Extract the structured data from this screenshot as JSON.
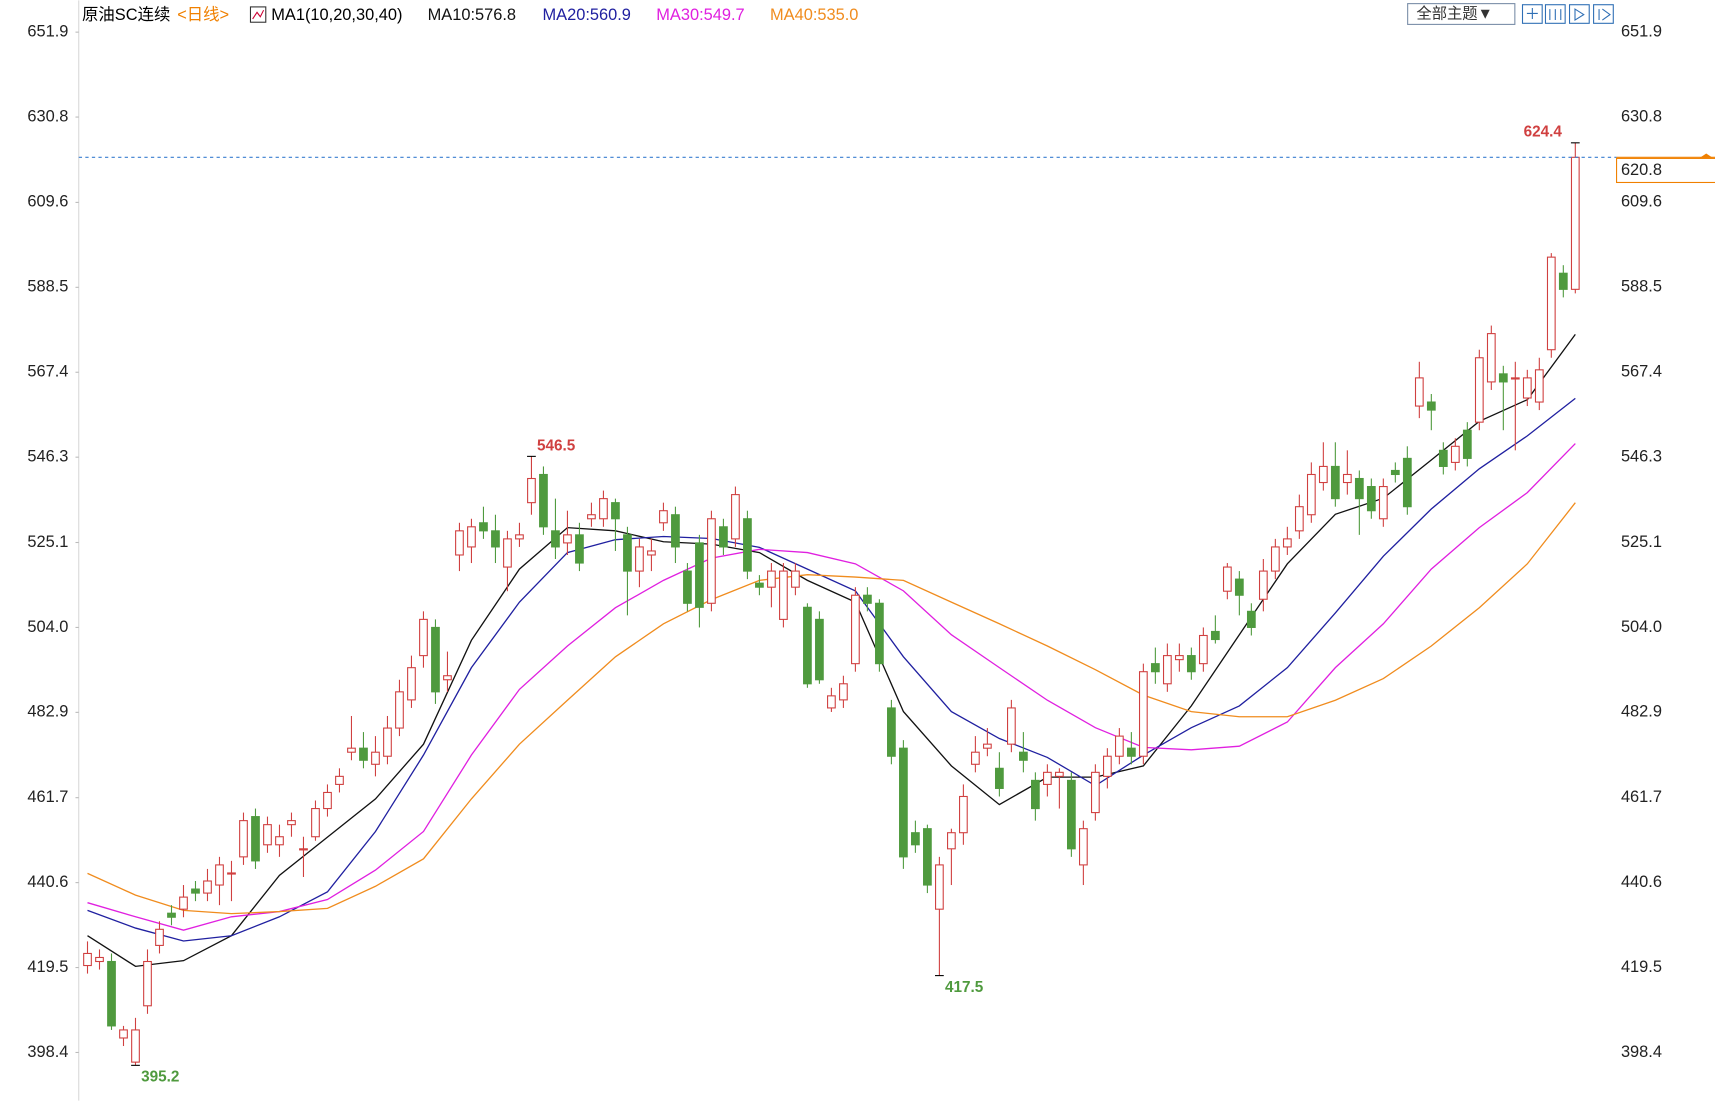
{
  "chart_data": {
    "type": "candlestick",
    "title": "原油SC连续",
    "period_label": "<日线>",
    "indicator_label": "MA1(10,20,30,40)",
    "theme_button": "全部主题▼",
    "up_color": "#d04040",
    "down_color": "#4f9a3e",
    "last_price_color": "#f08000",
    "open": [
      420,
      421,
      421,
      402,
      396,
      410,
      425,
      433,
      434,
      439,
      438,
      440,
      443,
      447,
      457,
      450,
      450,
      455,
      449,
      452,
      459,
      465,
      473,
      474,
      470,
      472,
      479,
      486,
      497,
      504,
      491,
      522,
      524,
      530,
      528,
      519,
      526,
      535,
      542,
      528,
      525,
      527,
      531,
      531,
      535,
      527,
      518,
      522,
      530,
      532,
      518,
      525,
      510,
      529,
      526,
      531,
      515,
      514,
      506,
      514,
      509,
      506,
      484,
      486,
      495,
      512,
      510,
      484,
      474,
      453,
      454,
      434,
      449,
      453,
      470,
      474,
      469,
      475,
      473,
      466,
      465,
      467,
      466,
      445,
      458,
      467,
      472,
      474,
      472,
      495,
      490,
      496,
      497,
      495,
      503,
      513,
      516,
      508,
      511,
      518,
      524,
      528,
      532,
      540,
      544,
      540,
      541,
      539,
      531,
      543,
      546,
      559,
      560,
      548,
      545,
      553,
      555,
      565,
      567,
      566,
      561,
      560,
      573,
      592,
      588
    ],
    "high": [
      426,
      424,
      423,
      405,
      407,
      424,
      431,
      435,
      440,
      441,
      444,
      447,
      446,
      458,
      459,
      457,
      455,
      458,
      452,
      461,
      465,
      469,
      482,
      478,
      477,
      482,
      491,
      497,
      508,
      506,
      498,
      530,
      531,
      534,
      532,
      528,
      530,
      546.5,
      544,
      536,
      533,
      530,
      535,
      538,
      536,
      529,
      526,
      526,
      535,
      534,
      520,
      527,
      533,
      531,
      539,
      533,
      517,
      520,
      520,
      520,
      510,
      508,
      489,
      492,
      514,
      514,
      511,
      486,
      476,
      456,
      455,
      447,
      454,
      465,
      477,
      479,
      473,
      486,
      478,
      468,
      470,
      469,
      468,
      456,
      470,
      474,
      479,
      478,
      495,
      499,
      500,
      500,
      499,
      504,
      507,
      520,
      518,
      510,
      521,
      526,
      529,
      537,
      545,
      550,
      550,
      548,
      543,
      541,
      541,
      545,
      549,
      570,
      562,
      550,
      551,
      555,
      573,
      579,
      569,
      570,
      568,
      571,
      597,
      594,
      624.4
    ],
    "low": [
      418,
      419,
      404,
      400,
      395.2,
      408,
      423,
      430,
      432,
      436,
      436,
      435,
      436,
      445,
      444,
      448,
      447,
      452,
      442,
      451,
      457,
      463,
      471,
      469,
      467,
      470,
      477,
      484,
      494,
      485,
      488,
      518,
      520,
      526,
      520,
      513,
      524,
      532,
      527,
      521,
      522,
      518,
      529,
      529,
      523,
      507,
      514,
      518,
      528,
      520,
      508,
      504,
      508,
      522,
      524,
      516,
      512,
      509,
      504,
      512,
      489,
      490,
      483,
      484,
      493,
      508,
      493,
      470,
      444,
      448,
      438,
      417.5,
      440,
      450,
      468,
      472,
      462,
      473,
      468,
      456,
      462,
      459,
      447,
      440,
      456,
      464,
      470,
      470,
      470,
      490,
      488,
      493,
      491,
      493,
      500,
      511,
      507,
      502,
      508,
      516,
      522,
      526,
      530,
      538,
      534,
      537,
      527,
      531,
      529,
      540,
      532,
      556,
      553,
      542,
      543,
      544,
      553,
      563,
      553,
      548,
      559,
      558,
      571,
      586,
      587
    ],
    "close": [
      423,
      422,
      405,
      404,
      404,
      421,
      429,
      432,
      437,
      438,
      441,
      445,
      443,
      456,
      446,
      455,
      452,
      456,
      449,
      459,
      463,
      467,
      474,
      471,
      473,
      479,
      488,
      494,
      506,
      488,
      492,
      528,
      529,
      528,
      524,
      526,
      527,
      541,
      529,
      524,
      527,
      520,
      532,
      536,
      531,
      518,
      524,
      523,
      533,
      524,
      510,
      509,
      531,
      524,
      537,
      518,
      514,
      518,
      518,
      518,
      490,
      491,
      487,
      490,
      512,
      510,
      495,
      472,
      447,
      450,
      440,
      445,
      453,
      462,
      473,
      475,
      464,
      484,
      471,
      459,
      468,
      468,
      449,
      454,
      468,
      472,
      477,
      472,
      493,
      493,
      497,
      497,
      493,
      502,
      501,
      519,
      512,
      504,
      518,
      524,
      526,
      534,
      542,
      544,
      536,
      542,
      536,
      533,
      539,
      542,
      534,
      566,
      558,
      544,
      549,
      546,
      571,
      577,
      565,
      566,
      566,
      568,
      596,
      588,
      620.8
    ],
    "series": [
      {
        "name": "MA10:576.8",
        "color": "#111111",
        "x": [
          0,
          4,
          8,
          12,
          16,
          20,
          24,
          28,
          32,
          36,
          40,
          44,
          48,
          52,
          56,
          60,
          64,
          68,
          72,
          76,
          80,
          84,
          88,
          92,
          96,
          100,
          104,
          108,
          112,
          116,
          120,
          124
        ],
        "values": [
          427.4,
          419.8,
          421.2,
          427.4,
          442.4,
          451.9,
          461.4,
          475.0,
          500.8,
          518.5,
          528.8,
          528.0,
          525.3,
          524.7,
          522.6,
          515.7,
          510.3,
          483.1,
          469.6,
          460.0,
          466.8,
          466.8,
          469.6,
          484.5,
          502.2,
          519.8,
          532.1,
          536.1,
          545.6,
          555.2,
          560.6,
          576.8
        ]
      },
      {
        "name": "MA20:560.9",
        "color": "#2020a0",
        "x": [
          0,
          4,
          8,
          12,
          16,
          20,
          24,
          28,
          32,
          36,
          40,
          44,
          48,
          52,
          56,
          60,
          64,
          68,
          72,
          76,
          80,
          84,
          88,
          92,
          96,
          100,
          104,
          108,
          112,
          116,
          120,
          124
        ],
        "values": [
          433.7,
          429.3,
          426.1,
          427.4,
          432.1,
          438.3,
          453.3,
          472.3,
          494.0,
          510.3,
          522.6,
          525.8,
          526.6,
          526.1,
          523.9,
          518.5,
          513.1,
          496.7,
          483.1,
          476.4,
          471.7,
          464.7,
          472.3,
          479.1,
          484.5,
          494.0,
          507.6,
          521.7,
          533.4,
          543.4,
          551.6,
          560.9
        ]
      },
      {
        "name": "MA30:549.7",
        "color": "#e020e0",
        "x": [
          0,
          4,
          8,
          12,
          16,
          20,
          24,
          28,
          32,
          36,
          40,
          44,
          48,
          52,
          56,
          60,
          64,
          68,
          72,
          76,
          80,
          84,
          88,
          92,
          96,
          100,
          104,
          108,
          112,
          116,
          120,
          124
        ],
        "values": [
          435.6,
          432.1,
          428.8,
          432.1,
          433.4,
          436.4,
          443.7,
          453.3,
          472.3,
          488.6,
          499.4,
          508.9,
          515.7,
          521.2,
          523.4,
          522.6,
          519.8,
          513.1,
          502.2,
          494.0,
          485.9,
          479.1,
          474.2,
          473.6,
          474.5,
          480.5,
          494.0,
          504.9,
          518.5,
          528.8,
          537.5,
          549.7
        ]
      },
      {
        "name": "MA40:535.0",
        "color": "#f08c1e",
        "x": [
          0,
          4,
          8,
          12,
          16,
          20,
          24,
          28,
          32,
          36,
          40,
          44,
          48,
          52,
          56,
          60,
          64,
          68,
          72,
          76,
          80,
          84,
          88,
          92,
          96,
          100,
          104,
          108,
          112,
          116,
          120,
          124
        ],
        "values": [
          442.9,
          437.5,
          433.7,
          432.9,
          433.4,
          434.2,
          439.7,
          446.5,
          461.4,
          475.0,
          485.9,
          496.7,
          504.9,
          510.9,
          515.7,
          517.1,
          516.5,
          515.7,
          510.3,
          504.9,
          499.4,
          493.5,
          487.2,
          483.1,
          481.8,
          481.8,
          485.9,
          491.3,
          499.4,
          508.9,
          519.8,
          535.0
        ]
      }
    ],
    "ylim": [
      386.7,
      659.8
    ],
    "yticks": [
      651.9,
      630.8,
      609.6,
      588.5,
      567.4,
      546.3,
      525.1,
      {
        "value": 504,
        "label": "504.0"
      },
      482.9,
      461.7,
      440.6,
      419.5,
      398.4
    ]
  }
}
